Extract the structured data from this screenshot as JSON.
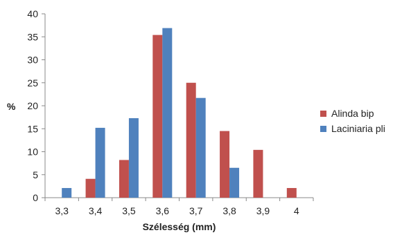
{
  "chart_data": {
    "type": "bar",
    "categories": [
      "3,3",
      "3,4",
      "3,5",
      "3,6",
      "3,7",
      "3,8",
      "3,9",
      "4"
    ],
    "series": [
      {
        "name": "Alinda bip",
        "values": [
          0,
          4.1,
          8.2,
          35.4,
          25.0,
          14.5,
          10.4,
          2.1
        ],
        "color": "#c0504d"
      },
      {
        "name": "Laciniaria pli",
        "values": [
          2.1,
          15.2,
          17.3,
          36.9,
          21.7,
          6.5,
          0,
          0
        ],
        "color": "#4f81bd"
      }
    ],
    "title": "",
    "xlabel": "Szélesség (mm)",
    "ylabel": "%",
    "ylim": [
      0,
      40
    ],
    "yticks": [
      0,
      5,
      10,
      15,
      20,
      25,
      30,
      35,
      40
    ],
    "grid": false,
    "legend_position": "right"
  }
}
